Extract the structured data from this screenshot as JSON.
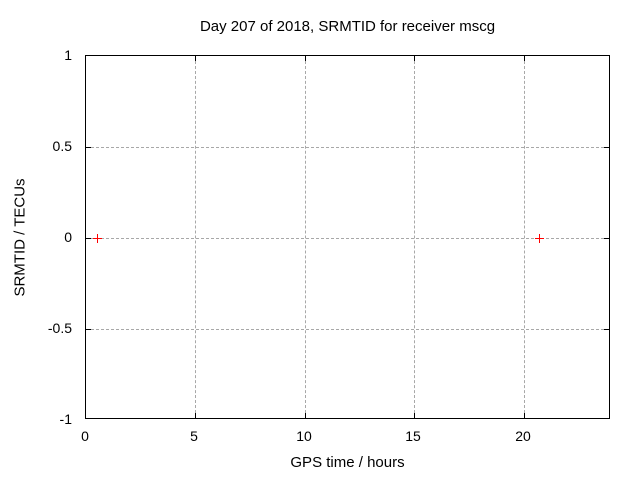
{
  "chart_data": {
    "type": "scatter",
    "title": "Day 207 of 2018, SRMTID for receiver mscg",
    "xlabel": "GPS time / hours",
    "ylabel": "SRMTID / TECUs",
    "xlim": [
      0,
      24
    ],
    "ylim": [
      -1,
      1
    ],
    "xticks": [
      0,
      5,
      10,
      15,
      20
    ],
    "yticks": [
      1,
      0.5,
      0,
      -0.5,
      -1
    ],
    "grid": true,
    "legend": false,
    "marker": "plus",
    "marker_color": "#ff0000",
    "grid_color": "#a8a8a8",
    "border_color": "#000000",
    "background_color": "#ffffff",
    "points": [
      {
        "x": 0.5,
        "y": 0
      },
      {
        "x": 20.7,
        "y": 0
      }
    ]
  }
}
